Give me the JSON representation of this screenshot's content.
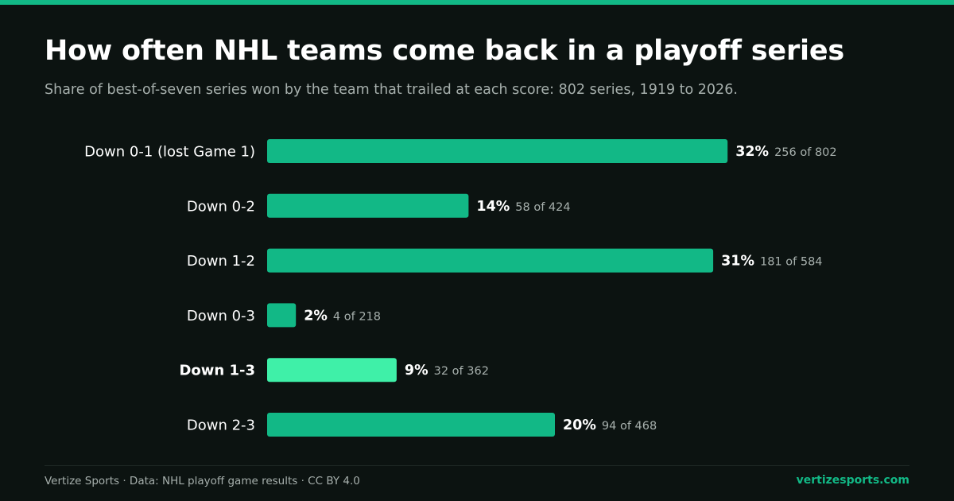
{
  "title": "How often NHL teams come back in a playoff series",
  "subtitle": "Share of best-of-seven series won by the team that trailed at each score: 802 series, 1919 to 2026.",
  "colors": {
    "background": "#0c1311",
    "accent": "#12b886",
    "bar": "#12b886",
    "bar_highlight": "#3ff0a8",
    "muted_text": "#a7b0ad"
  },
  "chart_data": {
    "type": "bar",
    "orientation": "horizontal",
    "title": "How often NHL teams come back in a playoff series",
    "subtitle": "Share of best-of-seven series won by the team that trailed at each score: 802 series, 1919 to 2026.",
    "xlabel": "",
    "ylabel": "",
    "xlim": [
      0,
      100
    ],
    "grid": false,
    "legend": "none",
    "categories": [
      "Down 0-1 (lost Game 1)",
      "Down 0-2",
      "Down 1-2",
      "Down 0-3",
      "Down 1-3",
      "Down 2-3"
    ],
    "values": [
      32,
      14,
      31,
      2,
      9,
      20
    ],
    "value_labels": [
      "32%",
      "14%",
      "31%",
      "2%",
      "9%",
      "20%"
    ],
    "count_labels": [
      "256 of 802",
      "58 of 424",
      "181 of 584",
      "4 of 218",
      "32 of 362",
      "94 of 468"
    ],
    "highlighted_category": "Down 1-3"
  },
  "footer": {
    "source": "Vertize Sports · Data: NHL playoff game results · CC BY 4.0",
    "brand": "vertizesports.com"
  }
}
